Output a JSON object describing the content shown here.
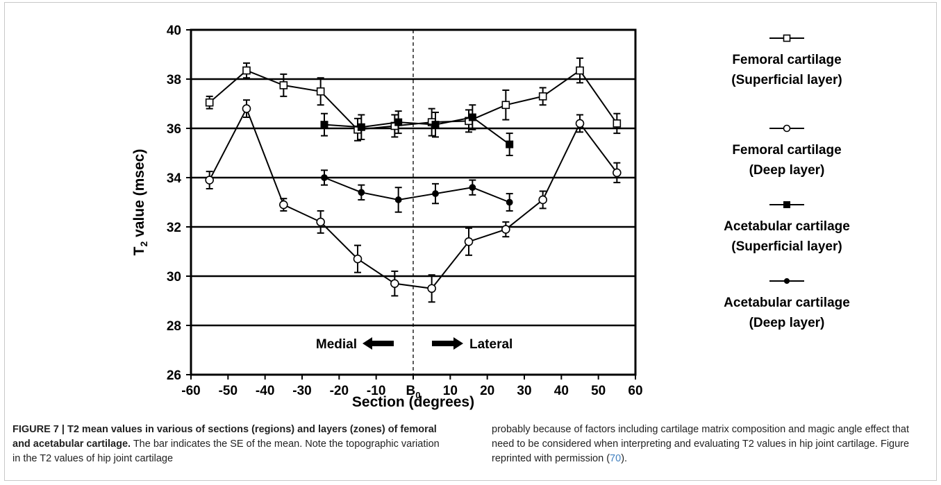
{
  "chart_data": {
    "type": "line",
    "xlabel": "Section (degrees)",
    "ylabel": "T",
    "ylabel_subscript": "2",
    "ylabel_suffix": " value (msec)",
    "xlim": [
      -60,
      60
    ],
    "ylim": [
      26,
      40
    ],
    "x_ticks": [
      "-60",
      "-50",
      "-40",
      "-30",
      "-20",
      "-10",
      "B",
      "10",
      "20",
      "30",
      "40",
      "50",
      "60"
    ],
    "x_tick_center_subscript": "0",
    "y_ticks": [
      "26",
      "28",
      "30",
      "32",
      "34",
      "36",
      "38",
      "40"
    ],
    "horizontal_gridlines": true,
    "center_dashed_line_x": 0,
    "annotations": {
      "medial": "Medial",
      "lateral": "Lateral"
    },
    "legend_placement": "right",
    "series": [
      {
        "name_line1": "Femoral cartilage",
        "name_line2": "(Superficial layer)",
        "marker": "open-square",
        "x": [
          -55,
          -45,
          -35,
          -25,
          -15,
          -5,
          5,
          15,
          25,
          35,
          45,
          55
        ],
        "y": [
          37.05,
          38.35,
          37.75,
          37.5,
          35.95,
          36.1,
          36.25,
          36.3,
          36.95,
          37.3,
          38.35,
          36.2
        ],
        "err": [
          0.25,
          0.3,
          0.45,
          0.55,
          0.45,
          0.45,
          0.55,
          0.45,
          0.6,
          0.35,
          0.5,
          0.4
        ]
      },
      {
        "name_line1": "Femoral cartilage",
        "name_line2": "(Deep layer)",
        "marker": "open-circle",
        "x": [
          -55,
          -45,
          -35,
          -25,
          -15,
          -5,
          5,
          15,
          25,
          35,
          45,
          55
        ],
        "y": [
          33.9,
          36.8,
          32.9,
          32.2,
          30.7,
          29.7,
          29.5,
          31.4,
          31.9,
          33.1,
          36.2,
          34.2
        ],
        "err": [
          0.35,
          0.35,
          0.25,
          0.45,
          0.55,
          0.5,
          0.55,
          0.55,
          0.3,
          0.35,
          0.35,
          0.4
        ]
      },
      {
        "name_line1": "Acetabular cartilage",
        "name_line2": "(Superficial layer)",
        "marker": "filled-square",
        "x": [
          -24,
          -14,
          -4,
          6,
          16,
          26
        ],
        "y": [
          36.15,
          36.05,
          36.25,
          36.15,
          36.45,
          35.35
        ],
        "err": [
          0.45,
          0.5,
          0.45,
          0.5,
          0.5,
          0.45
        ]
      },
      {
        "name_line1": "Acetabular cartilage",
        "name_line2": "(Deep layer)",
        "marker": "filled-circle",
        "x": [
          -24,
          -14,
          -4,
          6,
          16,
          26
        ],
        "y": [
          34.0,
          33.4,
          33.1,
          33.35,
          33.6,
          33.0
        ],
        "err": [
          0.3,
          0.3,
          0.5,
          0.4,
          0.3,
          0.35
        ]
      }
    ]
  },
  "caption": {
    "label": "FIGURE 7 | T2 mean values in various of sections (regions) and layers (zones) of femoral and acetabular cartilage.",
    "text_left": " The bar indicates the SE of the mean. Note the topographic variation in the T2 values of hip joint cartilage",
    "text_right_a": "probably because of factors including cartilage matrix composition and magic angle effect that need to be considered when interpreting and evaluating T2 values in hip joint cartilage. Figure reprinted with permission (",
    "ref": "70",
    "text_right_b": ")."
  },
  "colors": {
    "ink": "#000000",
    "caption_text": "#222222",
    "reference_link": "#3f7fbf",
    "frame": "#c8c8c8"
  }
}
